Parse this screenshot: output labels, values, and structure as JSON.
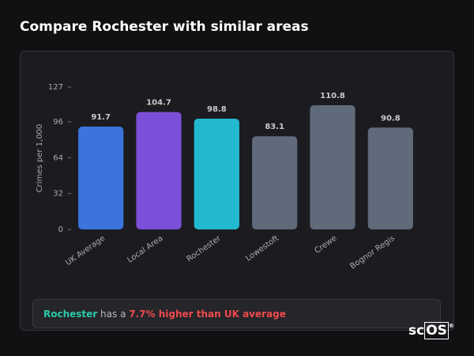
{
  "chart_data": {
    "type": "bar",
    "title": "Compare Rochester with similar areas",
    "y_label": "Crimes per 1,000",
    "categories": [
      "UK Average",
      "Local Area",
      "Rochester",
      "Lowestoft",
      "Crewe",
      "Bognor Regis"
    ],
    "values": [
      91.7,
      104.7,
      98.8,
      83.1,
      110.8,
      90.8
    ],
    "colors": [
      "#3b74dc",
      "#7b4fd8",
      "#22b9d0",
      "#5f6a7a",
      "#5f6a7a",
      "#5f6a7a"
    ],
    "ylim": [
      0,
      127
    ],
    "yticks": [
      0,
      32,
      64,
      96,
      127
    ]
  },
  "footer": {
    "area": "Rochester",
    "middle": "has a",
    "highlight": "7.7% higher than UK average"
  },
  "logo": {
    "prefix": "sc",
    "boxed": "OS",
    "mark": "®"
  }
}
